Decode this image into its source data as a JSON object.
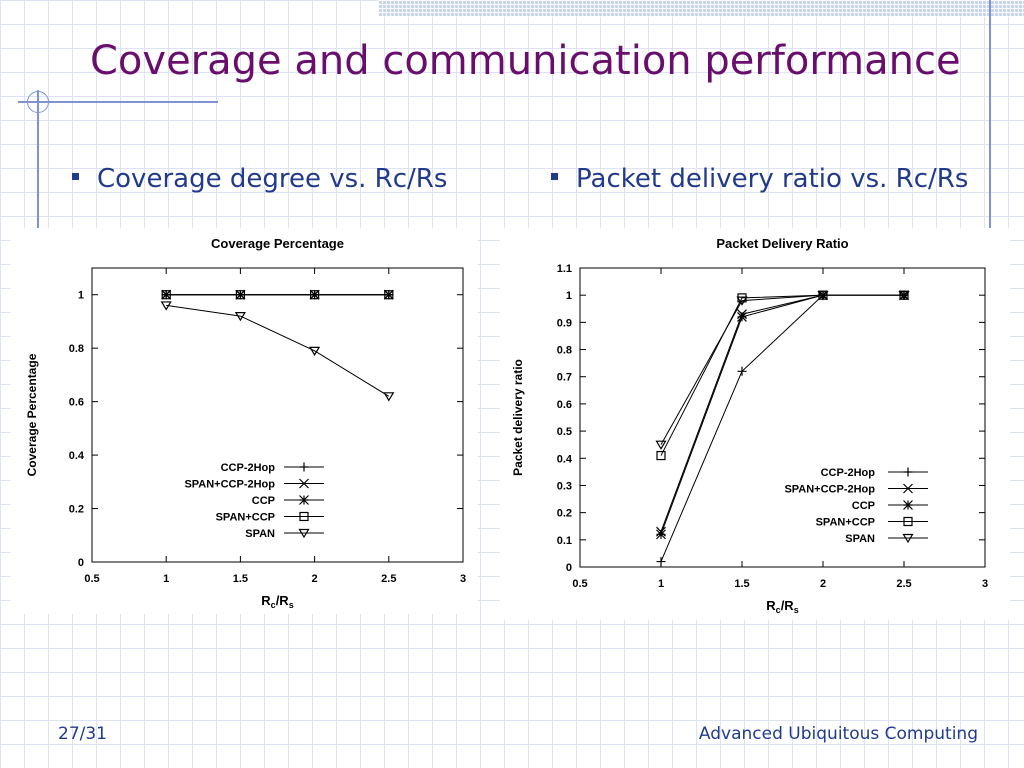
{
  "slide": {
    "title": "Coverage and communication performance",
    "bullets": [
      "Coverage degree vs. Rc/Rs",
      "Packet delivery ratio vs. Rc/Rs"
    ],
    "page_number": "27/31",
    "course": "Advanced Ubiquitous Computing",
    "colors": {
      "title": "#6a0e6e",
      "text": "#213a8c",
      "accent": "#7f93d2"
    }
  },
  "chart_data": [
    {
      "type": "line",
      "title": "Coverage Percentage",
      "xlabel": "Rc/Rs",
      "ylabel": "Coverage Percentage",
      "xlim": [
        0.5,
        3
      ],
      "ylim": [
        0,
        1.1
      ],
      "xticks": [
        "0.5",
        "1",
        "1.5",
        "2",
        "2.5",
        "3"
      ],
      "yticks": [
        "0",
        "0.2",
        "0.4",
        "0.6",
        "0.8",
        "1"
      ],
      "legend_position": "bottom-right",
      "series": [
        {
          "name": "CCP-2Hop",
          "marker": "plus",
          "x": [
            1,
            1.5,
            2,
            2.5
          ],
          "y": [
            1,
            1,
            1,
            1
          ]
        },
        {
          "name": "SPAN+CCP-2Hop",
          "marker": "cross",
          "x": [
            1,
            1.5,
            2,
            2.5
          ],
          "y": [
            1,
            1,
            1,
            1
          ]
        },
        {
          "name": "CCP",
          "marker": "star",
          "x": [
            1,
            1.5,
            2,
            2.5
          ],
          "y": [
            1,
            1,
            1,
            1
          ]
        },
        {
          "name": "SPAN+CCP",
          "marker": "square",
          "x": [
            1,
            1.5,
            2,
            2.5
          ],
          "y": [
            1,
            1,
            1,
            1
          ]
        },
        {
          "name": "SPAN",
          "marker": "triangle",
          "x": [
            1,
            1.5,
            2,
            2.5
          ],
          "y": [
            0.96,
            0.92,
            0.79,
            0.62
          ]
        }
      ]
    },
    {
      "type": "line",
      "title": "Packet Delivery Ratio",
      "xlabel": "Rc/Rs",
      "ylabel": "Packet delivery ratio",
      "xlim": [
        0.5,
        3
      ],
      "ylim": [
        0,
        1.1
      ],
      "xticks": [
        "0.5",
        "1",
        "1.5",
        "2",
        "2.5",
        "3"
      ],
      "yticks": [
        "0",
        "0.1",
        "0.2",
        "0.3",
        "0.4",
        "0.5",
        "0.6",
        "0.7",
        "0.8",
        "0.9",
        "1",
        "1.1"
      ],
      "legend_position": "bottom-right",
      "series": [
        {
          "name": "CCP-2Hop",
          "marker": "plus",
          "x": [
            1,
            1.5,
            2,
            2.5
          ],
          "y": [
            0.02,
            0.72,
            1,
            1
          ]
        },
        {
          "name": "SPAN+CCP-2Hop",
          "marker": "cross",
          "x": [
            1,
            1.5,
            2,
            2.5
          ],
          "y": [
            0.13,
            0.93,
            1,
            1
          ]
        },
        {
          "name": "CCP",
          "marker": "star",
          "x": [
            1,
            1.5,
            2,
            2.5
          ],
          "y": [
            0.12,
            0.92,
            1,
            1
          ]
        },
        {
          "name": "SPAN+CCP",
          "marker": "square",
          "x": [
            1,
            1.5,
            2,
            2.5
          ],
          "y": [
            0.41,
            0.99,
            1,
            1
          ]
        },
        {
          "name": "SPAN",
          "marker": "triangle",
          "x": [
            1,
            1.5,
            2,
            2.5
          ],
          "y": [
            0.45,
            0.98,
            1,
            1
          ]
        }
      ]
    }
  ]
}
